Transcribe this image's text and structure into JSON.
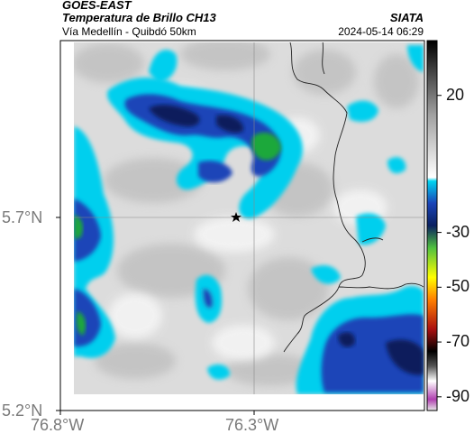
{
  "header": {
    "satellite": "GOES-EAST",
    "product": "Temperatura de Brillo CH13",
    "region": "Vía Medellín - Quibdó 50km",
    "brand": "SIATA",
    "datetime": "2024-05-14 06:29"
  },
  "map": {
    "x_ticks": [
      {
        "lon": -76.8,
        "label": "76.8°W"
      },
      {
        "lon": -76.3,
        "label": "76.3°W"
      }
    ],
    "y_ticks": [
      {
        "lat": 5.7,
        "label": "5.7°N"
      },
      {
        "lat": 5.2,
        "label": "5.2°N"
      }
    ],
    "center_marker": {
      "name": "star",
      "lon": -76.35,
      "lat": 5.7
    },
    "crosshair": {
      "lon": -76.3,
      "lat": 5.7
    }
  },
  "colorbar": {
    "ticks": [
      {
        "value": 20,
        "label": "20"
      },
      {
        "value": -30,
        "label": "-30"
      },
      {
        "value": -50,
        "label": "-50"
      },
      {
        "value": -70,
        "label": "-70"
      },
      {
        "value": -90,
        "label": "-90"
      }
    ],
    "range": [
      -95,
      40
    ]
  },
  "colors": {
    "deep_cloud": "#0a1f5c",
    "blue": "#1a44b8",
    "cyan": "#00d4f0",
    "green": "#1fa83a",
    "background_gray": "#dcdcdc"
  }
}
